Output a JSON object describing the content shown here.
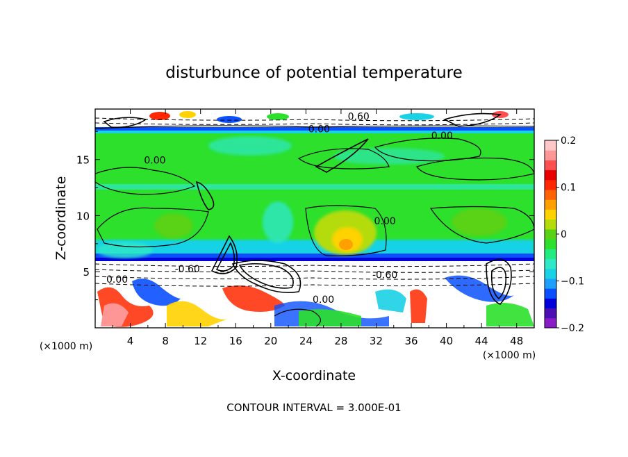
{
  "chart_data": {
    "type": "heatmap",
    "title": "disturbunce of potential temperature",
    "xlabel": "X-coordinate",
    "ylabel": "Z-coordinate",
    "x_unit_label": "(×1000 m)",
    "y_unit_label": "(×1000 m)",
    "xlim": [
      0,
      50
    ],
    "ylim": [
      0,
      19.5
    ],
    "x_ticks": [
      4,
      8,
      12,
      16,
      20,
      24,
      28,
      32,
      36,
      40,
      44,
      48
    ],
    "y_ticks": [
      5,
      10,
      15
    ],
    "colorbar": {
      "min": -0.2,
      "max": 0.2,
      "tick_values": [
        0.2,
        0.1,
        0,
        -0.1,
        -0.2
      ],
      "tick_labels": [
        "0.2",
        "0.1",
        "0",
        "−0.1",
        "−0.2"
      ],
      "colors": [
        "#8a1cc8",
        "#4b0fb4",
        "#0000d8",
        "#0a50ff",
        "#1ea0ff",
        "#19d2e6",
        "#2ee8c8",
        "#22ec80",
        "#2ce02c",
        "#5ad214",
        "#b4dc0a",
        "#ffd200",
        "#ffa000",
        "#ff6400",
        "#ff2800",
        "#e60000",
        "#ff5050",
        "#ff9696",
        "#ffc8c8"
      ]
    },
    "contour_interval_text": "CONTOUR INTERVAL = 3.000E-01",
    "contour_labels": [
      {
        "text": "0.00",
        "x": 6.8,
        "z": 14.7
      },
      {
        "text": "0.00",
        "x": 25.5,
        "z": 17.5
      },
      {
        "text": "0.60",
        "x": 30.0,
        "z": 18.6
      },
      {
        "text": "0.00",
        "x": 39.5,
        "z": 16.9
      },
      {
        "text": "0.00",
        "x": 33.0,
        "z": 9.3
      },
      {
        "text": "-0.60",
        "x": 10.5,
        "z": 5.0
      },
      {
        "text": "0.00",
        "x": 2.5,
        "z": 4.1
      },
      {
        "text": "-0.60",
        "x": 33.0,
        "z": 4.5
      },
      {
        "text": "0.00",
        "x": 26.0,
        "z": 2.3
      }
    ]
  }
}
